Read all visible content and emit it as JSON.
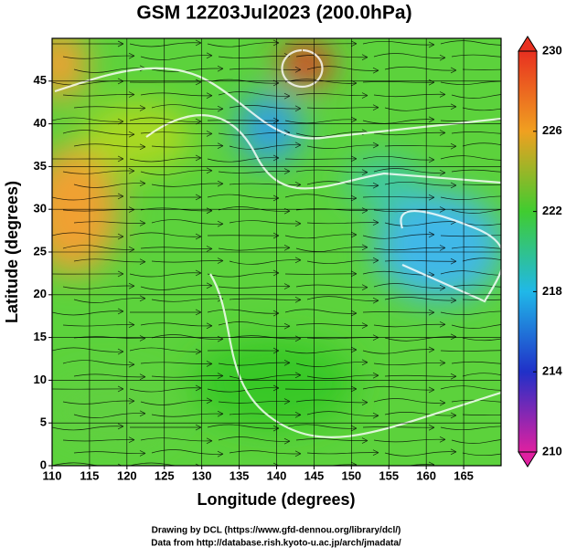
{
  "chart_data": {
    "type": "map",
    "title": "GSM 12Z03Jul2023 (200.0hPa)",
    "x_label": "Longitude (degrees)",
    "y_label": "Latitude  (degrees)",
    "xlim": [
      110,
      170
    ],
    "xticks": [
      110,
      115,
      120,
      125,
      130,
      135,
      140,
      145,
      150,
      155,
      160,
      165
    ],
    "ylim": [
      0,
      50
    ],
    "yticks": [
      0,
      5,
      10,
      15,
      20,
      25,
      30,
      35,
      40,
      45
    ],
    "grid": true,
    "colorbar": {
      "lim": [
        210,
        230
      ],
      "ticks": [
        210,
        214,
        218,
        222,
        226,
        230
      ],
      "colors": [
        "#e020a0",
        "#2030c8",
        "#20b8e8",
        "#40cc30",
        "#f0a020",
        "#e83020"
      ]
    },
    "credits": [
      "Drawing by DCL (https://www.gfd-dennou.org/library/dcl/)",
      "Data from http://database.rish.kyoto-u.ac.jp/arch/jmadata/"
    ]
  }
}
